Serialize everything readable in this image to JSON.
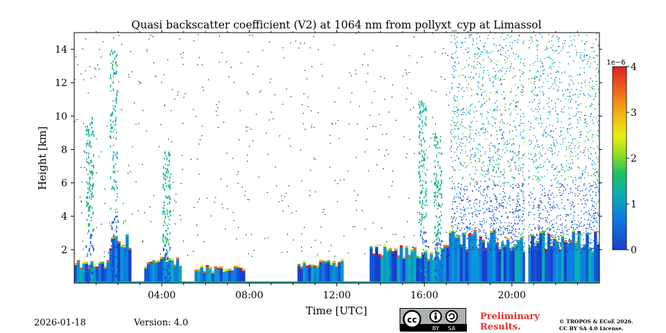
{
  "chart_data": {
    "type": "heatmap",
    "title": "Quasi backscatter coefficient (V2) at 1064 nm from pollyxt_cyp at Limassol",
    "xlabel": "Time [UTC]",
    "ylabel": "Height [km]",
    "xlim": [
      0,
      24
    ],
    "ylim": [
      0,
      15
    ],
    "x_ticks": [
      {
        "value": 4,
        "label": "04:00"
      },
      {
        "value": 8,
        "label": "08:00"
      },
      {
        "value": 12,
        "label": "12:00"
      },
      {
        "value": 16,
        "label": "16:00"
      },
      {
        "value": 20,
        "label": "20:00"
      }
    ],
    "y_ticks": [
      {
        "value": 2,
        "label": "2"
      },
      {
        "value": 4,
        "label": "4"
      },
      {
        "value": 6,
        "label": "6"
      },
      {
        "value": 8,
        "label": "8"
      },
      {
        "value": 10,
        "label": "10"
      },
      {
        "value": 12,
        "label": "12"
      },
      {
        "value": 14,
        "label": "14"
      }
    ],
    "colorbar": {
      "range": [
        0,
        4
      ],
      "exponent_label": "1e−6",
      "ticks": [
        {
          "value": 0,
          "label": "0"
        },
        {
          "value": 1,
          "label": "1"
        },
        {
          "value": 2,
          "label": "2"
        },
        {
          "value": 3,
          "label": "3"
        },
        {
          "value": 4,
          "label": "4"
        }
      ]
    },
    "features": {
      "boundary_layer": [
        {
          "t0": 0.0,
          "t1": 1.6,
          "top_km": 1.2
        },
        {
          "t0": 1.6,
          "t1": 2.6,
          "top_km": 2.6
        },
        {
          "t0": 3.2,
          "t1": 4.9,
          "top_km": 1.4
        },
        {
          "t0": 5.5,
          "t1": 7.8,
          "top_km": 1.0
        },
        {
          "t0": 10.2,
          "t1": 12.3,
          "top_km": 1.3
        },
        {
          "t0": 13.5,
          "t1": 17.0,
          "top_km": 2.0
        },
        {
          "t0": 17.0,
          "t1": 24.0,
          "top_km": 2.8
        }
      ],
      "aerosol_columns": [
        {
          "t": 0.7,
          "top_km": 10
        },
        {
          "t": 1.8,
          "top_km": 14
        },
        {
          "t": 4.2,
          "top_km": 8
        },
        {
          "t": 15.9,
          "top_km": 11
        },
        {
          "t": 16.6,
          "top_km": 9
        }
      ],
      "noisy_region": {
        "t0": 17.2,
        "t1": 24.0
      },
      "data_gap": {
        "t0": 20.6,
        "t1": 20.75
      }
    }
  },
  "footer": {
    "date": "2026-01-18",
    "version": "Version: 4.0",
    "license_badge": {
      "by": "BY",
      "sa": "SA"
    },
    "preliminary_line1": "Preliminary",
    "preliminary_line2": "Results.",
    "copyright_line1": "© TROPOS & ECoE 2026.",
    "copyright_line2": "CC BY SA 4.0 License."
  }
}
